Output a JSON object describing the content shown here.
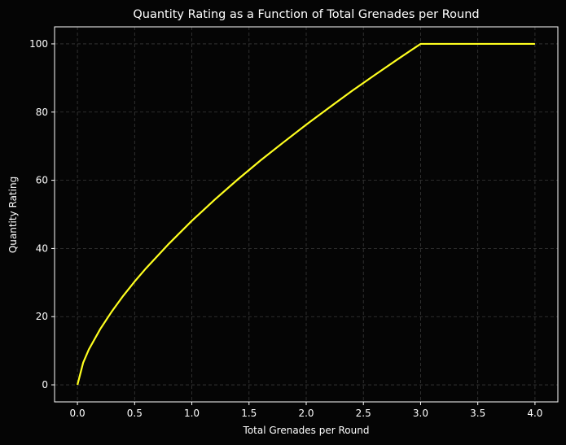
{
  "chart_data": {
    "type": "line",
    "title": "Quantity Rating as a Function of Total Grenades per Round",
    "x_label": "Total Grenades per Round",
    "y_label": "Quantity Rating",
    "x": [
      0,
      0.05,
      0.1,
      0.2,
      0.3,
      0.4,
      0.5,
      0.6,
      0.8,
      1.0,
      1.2,
      1.4,
      1.6,
      1.8,
      2.0,
      2.2,
      2.4,
      2.6,
      2.8,
      3.0,
      3.5,
      4.0
    ],
    "series": [
      {
        "color": "#ffff1f",
        "values": [
          0,
          6.5,
          10.4,
          16.4,
          21.5,
          26.1,
          30.3,
          34.2,
          41.4,
          48.1,
          54.3,
          60.2,
          65.8,
          71.1,
          76.3,
          81.3,
          86.2,
          90.9,
          95.5,
          100,
          100,
          100
        ]
      }
    ],
    "xlim": [
      -0.2,
      4.2
    ],
    "ylim": [
      -5,
      105
    ],
    "xticks": [
      {
        "value": 0,
        "label": "0.0"
      },
      {
        "value": 0.5,
        "label": "0.5"
      },
      {
        "value": 1,
        "label": "1.0"
      },
      {
        "value": 1.5,
        "label": "1.5"
      },
      {
        "value": 2,
        "label": "2.0"
      },
      {
        "value": 2.5,
        "label": "2.5"
      },
      {
        "value": 3,
        "label": "3.0"
      },
      {
        "value": 3.5,
        "label": "3.5"
      },
      {
        "value": 4,
        "label": "4.0"
      }
    ],
    "yticks": [
      0,
      20,
      40,
      60,
      80,
      100
    ],
    "grid": true
  }
}
